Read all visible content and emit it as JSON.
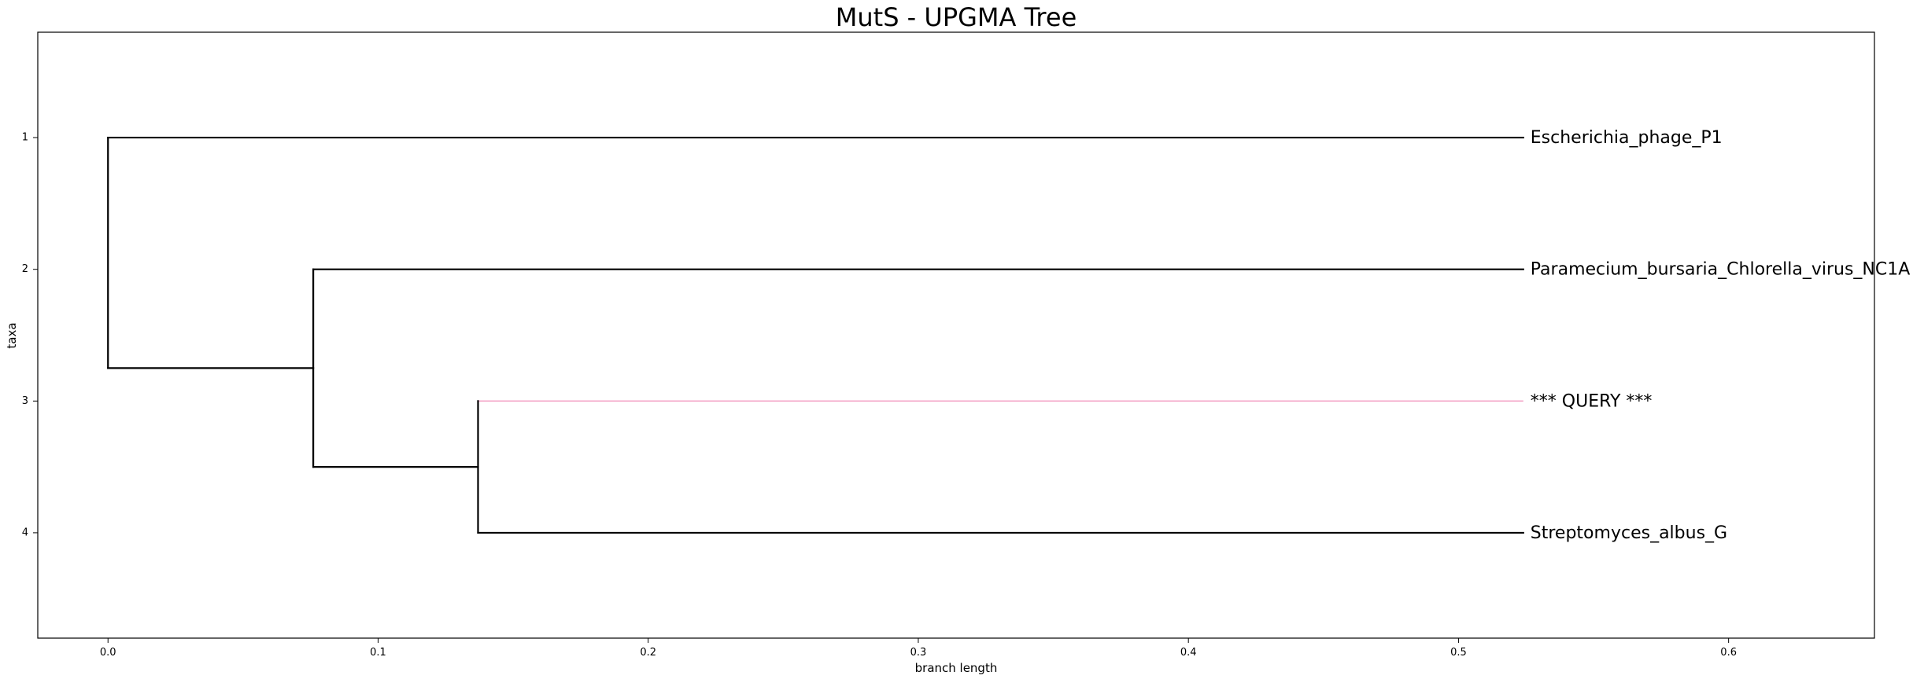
{
  "chart_data": {
    "type": "dendrogram",
    "title": "MutS - UPGMA Tree",
    "xlabel": "branch length",
    "ylabel": "taxa",
    "xlim": [
      -0.026,
      0.654
    ],
    "ylim": [
      4.8,
      0.2
    ],
    "x_ticks": [
      0.0,
      0.1,
      0.2,
      0.3,
      0.4,
      0.5,
      0.6
    ],
    "x_tick_labels": [
      "0.0",
      "0.1",
      "0.2",
      "0.3",
      "0.4",
      "0.5",
      "0.6"
    ],
    "y_ticks": [
      1,
      2,
      3,
      4
    ],
    "y_tick_labels": [
      "1",
      "2",
      "3",
      "4"
    ],
    "leaf_x": 0.524,
    "leaves": [
      {
        "label": "Escherichia_phage_P1",
        "y": 1,
        "highlight": false
      },
      {
        "label": "Paramecium_bursaria_Chlorella_virus_NC1A",
        "y": 2,
        "highlight": false
      },
      {
        "label": "*** QUERY ***",
        "y": 3,
        "highlight": true
      },
      {
        "label": "Streptomyces_albus_G",
        "y": 4,
        "highlight": false
      }
    ],
    "nodes": [
      {
        "x": 0.137,
        "children_y": [
          3,
          4
        ],
        "y": 3.5
      },
      {
        "x": 0.076,
        "children_y": [
          2,
          3.5
        ],
        "y": 2.75
      },
      {
        "x": 0.0,
        "children_y": [
          1,
          2.75
        ],
        "y": 1.875
      }
    ],
    "colors": {
      "branch": "#000000",
      "query_branch": "#f4a6c8",
      "frame": "#000000"
    },
    "grid": false,
    "legend": "none"
  }
}
